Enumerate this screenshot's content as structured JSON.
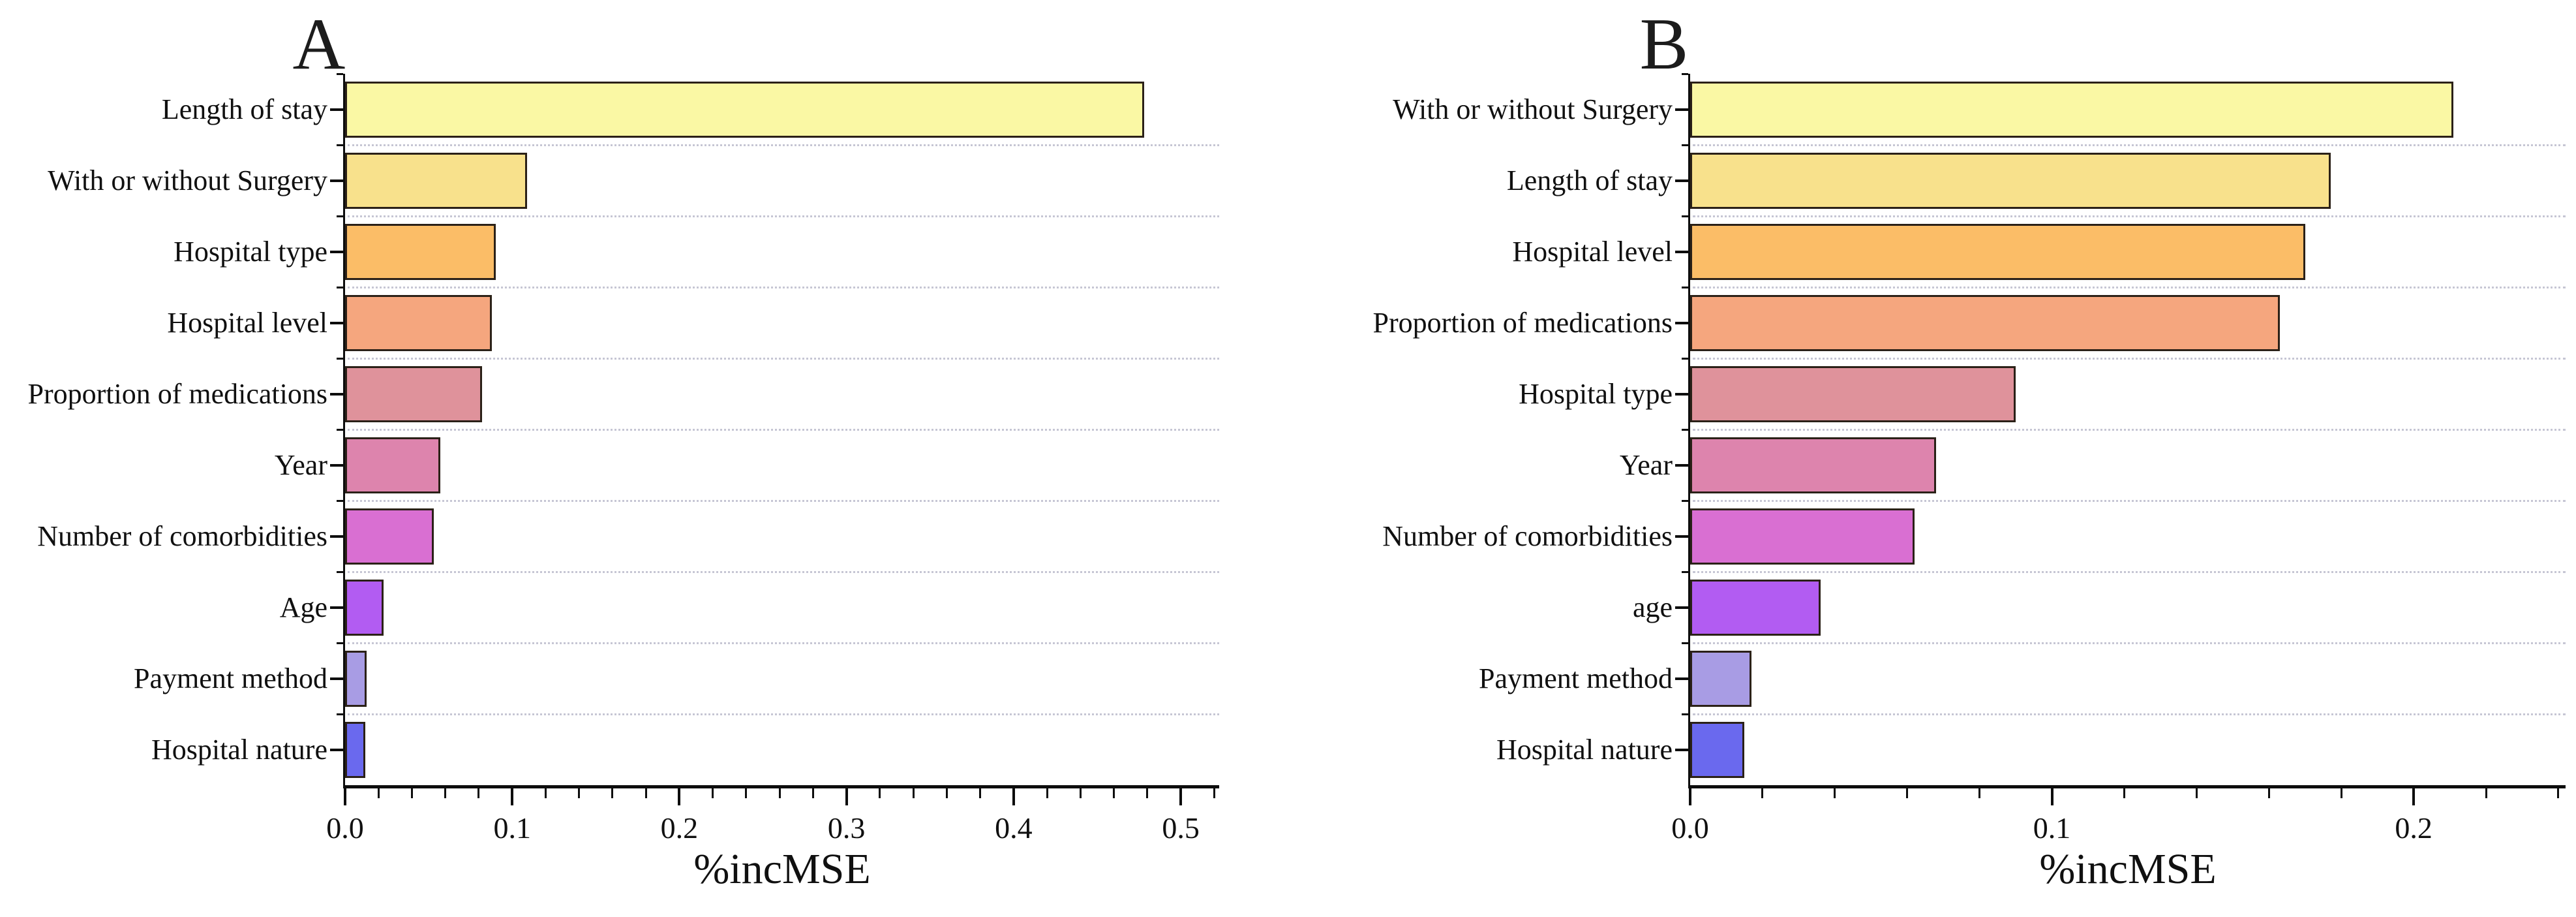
{
  "figure": {
    "background": "#ffffff",
    "axis_color": "#0d0d0d",
    "grid_color": "#c6c6d4",
    "bar_border_color": "#2b2118",
    "bar_colors": [
      "#faf8a4",
      "#f8e18c",
      "#fbbd67",
      "#f5a67e",
      "#df929b",
      "#dd84ad",
      "#d96fd2",
      "#b25cf2",
      "#a89ce4",
      "#6a69ee"
    ]
  },
  "chart_data": [
    {
      "panel": "A",
      "type": "bar",
      "orientation": "horizontal",
      "title": "A",
      "xlabel": "%incMSE",
      "ylabel": "",
      "xlim": [
        0,
        0.523
      ],
      "grid": "horizontal-dotted",
      "legend": "none",
      "xtick_values": [
        0.0,
        0.1,
        0.2,
        0.3,
        0.4,
        0.5
      ],
      "xtick_labels": [
        "0.0",
        "0.1",
        "0.2",
        "0.3",
        "0.4",
        "0.5"
      ],
      "minor_tick_step": 0.02,
      "categories": [
        "Length of stay",
        "With or without Surgery",
        "Hospital type",
        "Hospital level",
        "Proportion of medications",
        "Year",
        "Number of comorbidities",
        "Age",
        "Payment method",
        "Hospital nature"
      ],
      "values": [
        0.478,
        0.109,
        0.09,
        0.088,
        0.082,
        0.057,
        0.053,
        0.023,
        0.013,
        0.012
      ]
    },
    {
      "panel": "B",
      "type": "bar",
      "orientation": "horizontal",
      "title": "B",
      "xlabel": "%incMSE",
      "ylabel": "",
      "xlim": [
        0,
        0.242
      ],
      "grid": "horizontal-dotted",
      "legend": "none",
      "xtick_values": [
        0.0,
        0.1,
        0.2
      ],
      "xtick_labels": [
        "0.0",
        "0.1",
        "0.2"
      ],
      "minor_tick_step": 0.02,
      "categories": [
        "With or without Surgery",
        "Length of stay",
        "Hospital level",
        "Proportion of medications",
        "Hospital type",
        "Year",
        "Number of comorbidities",
        "age",
        "Payment method",
        "Hospital nature"
      ],
      "values": [
        0.211,
        0.177,
        0.17,
        0.163,
        0.09,
        0.068,
        0.062,
        0.036,
        0.017,
        0.015
      ]
    }
  ]
}
